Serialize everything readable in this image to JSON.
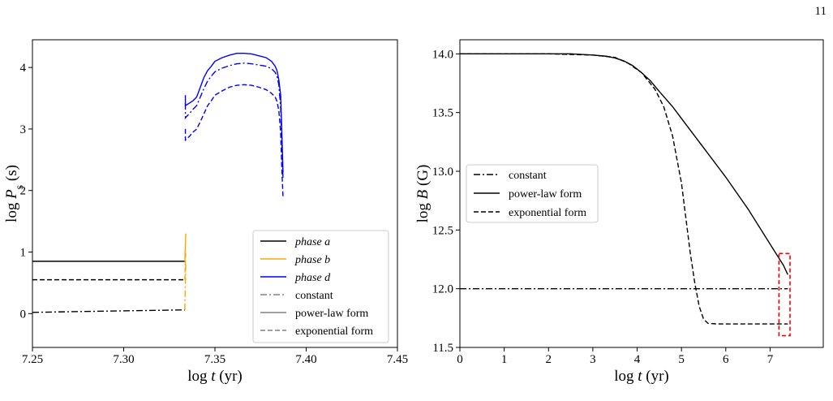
{
  "page": {
    "number": "11"
  },
  "chart_data": [
    {
      "type": "line",
      "id": "left",
      "xlabel": {
        "prefix": "log ",
        "var": "t",
        "suffix": " (yr)"
      },
      "ylabel": {
        "prefix": "log ",
        "var": "P",
        "sub": "s",
        "suffix": " (s)"
      },
      "xlim": [
        7.25,
        7.45
      ],
      "ylim": [
        -0.55,
        4.45
      ],
      "xticks": [
        7.25,
        7.3,
        7.35,
        7.4,
        7.45
      ],
      "xtick_labels": [
        "7.25",
        "7.30",
        "7.35",
        "7.40",
        "7.45"
      ],
      "yticks": [
        0,
        1,
        2,
        3,
        4
      ],
      "ytick_labels": [
        "0",
        "1",
        "2",
        "3",
        "4"
      ],
      "grid": false,
      "legend_position": "lower-right",
      "legend": [
        {
          "label": "phase a",
          "color": "#000000",
          "dash": "solid",
          "italic": true
        },
        {
          "label": "phase b",
          "color": "#ffa500",
          "dash": "solid",
          "italic": true
        },
        {
          "label": "phase d",
          "color": "#0000ff",
          "dash": "solid",
          "italic": true
        },
        {
          "label": "constant",
          "color": "#808080",
          "dash": "dashdot",
          "italic": false
        },
        {
          "label": "power-law form",
          "color": "#808080",
          "dash": "solid",
          "italic": false
        },
        {
          "label": "exponential form",
          "color": "#808080",
          "dash": "dashed",
          "italic": false
        }
      ],
      "series": [
        {
          "phase": "a",
          "form": "power-law",
          "color": "#000000",
          "dash": "solid",
          "points": [
            [
              7.25,
              0.85
            ],
            [
              7.3335,
              0.85
            ]
          ]
        },
        {
          "phase": "a",
          "form": "exponential",
          "color": "#000000",
          "dash": "dashed",
          "points": [
            [
              7.25,
              0.55
            ],
            [
              7.3335,
              0.55
            ]
          ]
        },
        {
          "phase": "a",
          "form": "constant",
          "color": "#000000",
          "dash": "dashdot",
          "points": [
            [
              7.25,
              0.02
            ],
            [
              7.29,
              0.04
            ],
            [
              7.3335,
              0.06
            ]
          ]
        },
        {
          "phase": "b",
          "form": "power-law",
          "color": "#ffa500",
          "dash": "solid",
          "points": [
            [
              7.3335,
              0.85
            ],
            [
              7.334,
              1.3
            ]
          ]
        },
        {
          "phase": "b",
          "form": "exponential",
          "color": "#ffa500",
          "dash": "dashed",
          "points": [
            [
              7.3335,
              0.55
            ],
            [
              7.334,
              1.0
            ]
          ]
        },
        {
          "phase": "b",
          "form": "constant",
          "color": "#ffa500",
          "dash": "dashdot",
          "points": [
            [
              7.3335,
              0.06
            ],
            [
              7.334,
              0.8
            ]
          ]
        },
        {
          "phase": "d",
          "form": "power-law",
          "color": "#0000ff",
          "dash": "solid",
          "points": [
            [
              7.3338,
              3.55
            ],
            [
              7.3338,
              3.38
            ],
            [
              7.336,
              3.42
            ],
            [
              7.338,
              3.46
            ],
            [
              7.34,
              3.52
            ],
            [
              7.342,
              3.68
            ],
            [
              7.344,
              3.84
            ],
            [
              7.346,
              3.95
            ],
            [
              7.348,
              4.02
            ],
            [
              7.35,
              4.1
            ],
            [
              7.354,
              4.16
            ],
            [
              7.358,
              4.2
            ],
            [
              7.362,
              4.23
            ],
            [
              7.366,
              4.23
            ],
            [
              7.37,
              4.22
            ],
            [
              7.374,
              4.19
            ],
            [
              7.378,
              4.16
            ],
            [
              7.381,
              4.1
            ],
            [
              7.383,
              4.02
            ],
            [
              7.384,
              3.95
            ],
            [
              7.385,
              3.8
            ],
            [
              7.386,
              3.55
            ],
            [
              7.3866,
              3.0
            ],
            [
              7.387,
              2.6
            ],
            [
              7.3873,
              2.3
            ]
          ]
        },
        {
          "phase": "d",
          "form": "constant",
          "color": "#0000ff",
          "dash": "dashdot",
          "points": [
            [
              7.3338,
              3.42
            ],
            [
              7.3338,
              3.18
            ],
            [
              7.336,
              3.25
            ],
            [
              7.338,
              3.32
            ],
            [
              7.34,
              3.38
            ],
            [
              7.342,
              3.52
            ],
            [
              7.344,
              3.66
            ],
            [
              7.346,
              3.78
            ],
            [
              7.348,
              3.86
            ],
            [
              7.35,
              3.93
            ],
            [
              7.354,
              3.99
            ],
            [
              7.358,
              4.03
            ],
            [
              7.362,
              4.06
            ],
            [
              7.366,
              4.07
            ],
            [
              7.37,
              4.06
            ],
            [
              7.374,
              4.04
            ],
            [
              7.378,
              4.02
            ],
            [
              7.381,
              3.98
            ],
            [
              7.383,
              3.92
            ],
            [
              7.384,
              3.86
            ],
            [
              7.385,
              3.72
            ],
            [
              7.386,
              3.35
            ],
            [
              7.3866,
              2.85
            ],
            [
              7.387,
              2.5
            ],
            [
              7.3873,
              2.2
            ]
          ]
        },
        {
          "phase": "d",
          "form": "exponential",
          "color": "#0000ff",
          "dash": "dashed",
          "points": [
            [
              7.3338,
              3.0
            ],
            [
              7.3338,
              2.82
            ],
            [
              7.336,
              2.88
            ],
            [
              7.338,
              2.95
            ],
            [
              7.34,
              3.0
            ],
            [
              7.342,
              3.12
            ],
            [
              7.344,
              3.25
            ],
            [
              7.346,
              3.38
            ],
            [
              7.348,
              3.46
            ],
            [
              7.35,
              3.55
            ],
            [
              7.354,
              3.62
            ],
            [
              7.358,
              3.68
            ],
            [
              7.362,
              3.71
            ],
            [
              7.366,
              3.72
            ],
            [
              7.37,
              3.71
            ],
            [
              7.374,
              3.68
            ],
            [
              7.378,
              3.64
            ],
            [
              7.381,
              3.58
            ],
            [
              7.383,
              3.52
            ],
            [
              7.384,
              3.45
            ],
            [
              7.385,
              3.3
            ],
            [
              7.386,
              2.95
            ],
            [
              7.3866,
              2.4
            ],
            [
              7.387,
              2.1
            ],
            [
              7.3873,
              1.9
            ]
          ]
        }
      ]
    },
    {
      "type": "line",
      "id": "right",
      "xlabel": {
        "prefix": "log ",
        "var": "t",
        "suffix": " (yr)"
      },
      "ylabel": {
        "prefix": "log ",
        "var": "B",
        "suffix": " (G)"
      },
      "xlim": [
        0,
        8.2
      ],
      "ylim": [
        11.5,
        14.12
      ],
      "xticks": [
        0,
        1,
        2,
        3,
        4,
        5,
        6,
        7
      ],
      "xtick_labels": [
        "0",
        "1",
        "2",
        "3",
        "4",
        "5",
        "6",
        "7"
      ],
      "yticks": [
        11.5,
        12.0,
        12.5,
        13.0,
        13.5,
        14.0
      ],
      "ytick_labels": [
        "11.5",
        "12.0",
        "12.5",
        "13.0",
        "13.5",
        "14.0"
      ],
      "grid": false,
      "legend_position": "center-left",
      "legend": [
        {
          "label": "constant",
          "color": "#000000",
          "dash": "dashdot",
          "italic": false
        },
        {
          "label": "power-law form",
          "color": "#000000",
          "dash": "solid",
          "italic": false
        },
        {
          "label": "exponential form",
          "color": "#000000",
          "dash": "dashed",
          "italic": false
        }
      ],
      "series": [
        {
          "form": "constant",
          "color": "#000000",
          "dash": "dashdot",
          "points": [
            [
              0,
              12.0
            ],
            [
              7.4,
              12.0
            ]
          ]
        },
        {
          "form": "power-law",
          "color": "#000000",
          "dash": "solid",
          "points": [
            [
              0,
              14.0
            ],
            [
              1,
              14.0
            ],
            [
              2,
              14.0
            ],
            [
              2.5,
              14.0
            ],
            [
              3,
              13.99
            ],
            [
              3.3,
              13.98
            ],
            [
              3.5,
              13.965
            ],
            [
              3.7,
              13.94
            ],
            [
              3.9,
              13.9
            ],
            [
              4.1,
              13.84
            ],
            [
              4.3,
              13.77
            ],
            [
              4.5,
              13.68
            ],
            [
              4.8,
              13.55
            ],
            [
              5.1,
              13.4
            ],
            [
              5.5,
              13.2
            ],
            [
              6.0,
              12.95
            ],
            [
              6.5,
              12.68
            ],
            [
              7.0,
              12.38
            ],
            [
              7.3,
              12.2
            ],
            [
              7.4,
              12.12
            ]
          ]
        },
        {
          "form": "exponential",
          "color": "#000000",
          "dash": "dashed",
          "points": [
            [
              0,
              14.0
            ],
            [
              2,
              14.0
            ],
            [
              3,
              13.99
            ],
            [
              3.5,
              13.97
            ],
            [
              3.8,
              13.92
            ],
            [
              4.1,
              13.84
            ],
            [
              4.4,
              13.7
            ],
            [
              4.6,
              13.55
            ],
            [
              4.8,
              13.3
            ],
            [
              5.0,
              12.9
            ],
            [
              5.1,
              12.6
            ],
            [
              5.2,
              12.3
            ],
            [
              5.3,
              12.05
            ],
            [
              5.4,
              11.85
            ],
            [
              5.5,
              11.74
            ],
            [
              5.6,
              11.705
            ],
            [
              5.8,
              11.7
            ],
            [
              6.5,
              11.7
            ],
            [
              7.4,
              11.7
            ]
          ]
        }
      ],
      "highlight_box": {
        "x": [
          7.2,
          7.45
        ],
        "y": [
          11.6,
          12.3
        ],
        "color": "#ff0000",
        "dash": "dashed"
      }
    }
  ]
}
